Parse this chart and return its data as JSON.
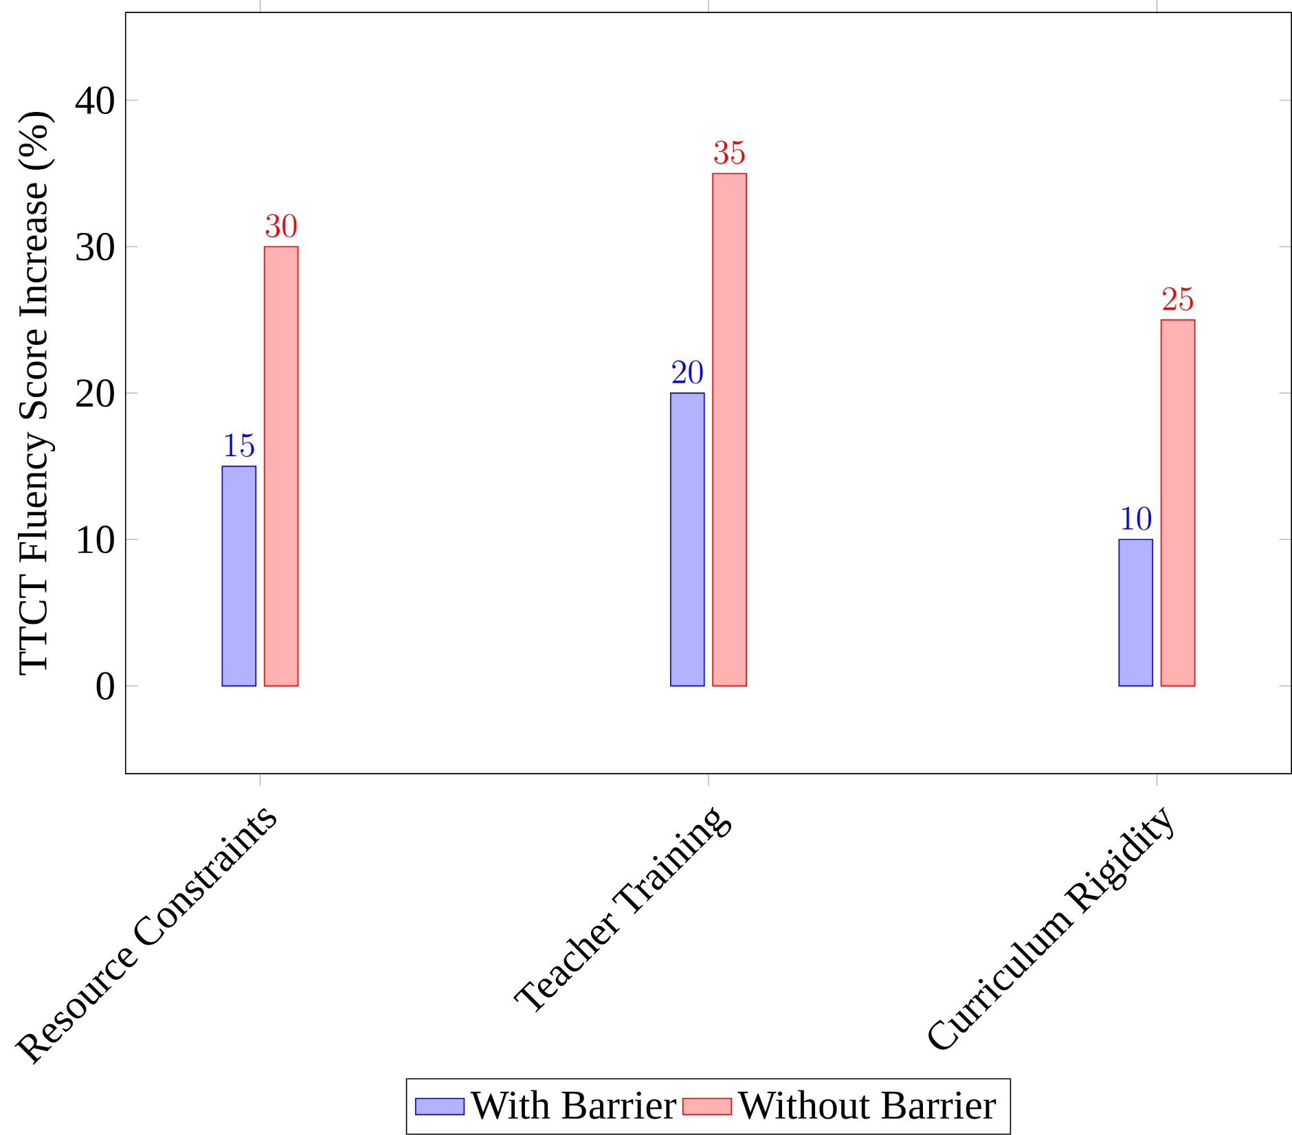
{
  "chart_data": {
    "type": "bar",
    "ylabel": "TTCT Fluency Score Increase (%)",
    "categories": [
      "Resource Constraints",
      "Teacher Training",
      "Curriculum Rigidity"
    ],
    "series": [
      {
        "name": "With Barrier",
        "color": "#0000ff",
        "values": [
          15,
          20,
          10
        ]
      },
      {
        "name": "Without Barrier",
        "color": "#ff0000",
        "values": [
          30,
          35,
          25
        ]
      }
    ],
    "ylim": [
      -6,
      46
    ],
    "yticks": [
      0,
      10,
      20,
      30,
      40
    ],
    "data_labels": true,
    "legend": "bottom"
  }
}
